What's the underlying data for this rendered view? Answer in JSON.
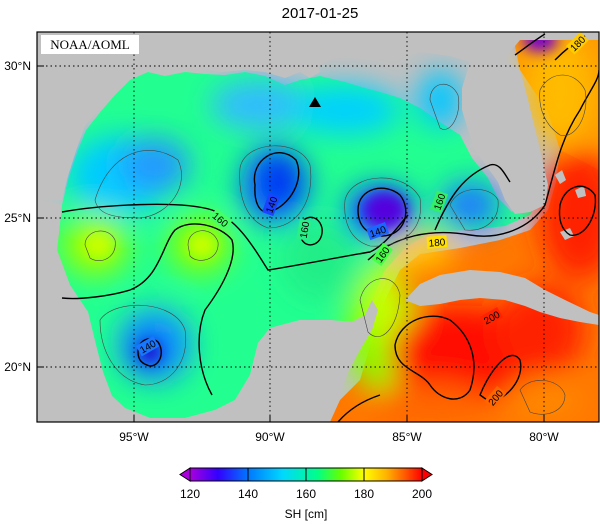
{
  "title": "2017-01-25",
  "credit": "NOAA/AOML",
  "lat_labels": [
    "30°N",
    "25°N",
    "20°N"
  ],
  "lon_labels": [
    "95°W",
    "90°W",
    "85°W",
    "80°W"
  ],
  "contour_labels": [
    "140",
    "140",
    "140",
    "160",
    "160",
    "160",
    "160",
    "180",
    "180",
    "200",
    "200"
  ],
  "colorbar": {
    "ticks": [
      "120",
      "140",
      "160",
      "180",
      "200"
    ],
    "label": "SH [cm]",
    "range": [
      120,
      200
    ],
    "colors": [
      "#aa00dd",
      "#3300ff",
      "#0077ff",
      "#00d8ff",
      "#00ff88",
      "#66ff00",
      "#ffff00",
      "#ffb000",
      "#ff5500",
      "#ff0000"
    ]
  },
  "marker": {
    "name": "triangle",
    "color": "#000000"
  },
  "map": {
    "lon_range": [
      -98.0,
      -77.5
    ],
    "lat_range": [
      18.0,
      31.0
    ],
    "land_color": "#c0c0c0",
    "grid": "dotted"
  }
}
